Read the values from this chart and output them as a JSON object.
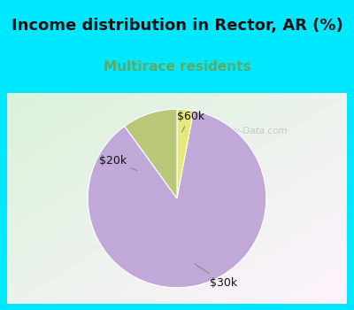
{
  "title": "Income distribution in Rector, AR (%)",
  "subtitle": "Multirace residents",
  "slices": [
    {
      "label": "$60k",
      "value": 3.0,
      "color": "#e8e87a"
    },
    {
      "label": "$30k",
      "value": 87.0,
      "color": "#c0a8d8"
    },
    {
      "label": "$20k",
      "value": 10.0,
      "color": "#b8c878"
    }
  ],
  "startangle": 90,
  "title_fontsize": 13,
  "title_fontweight": "bold",
  "subtitle_fontsize": 11,
  "subtitle_color": "#5aaa6a",
  "background_top": "#00e8ff",
  "watermark": "City-Data.com",
  "watermark_color": "#aaaaaa",
  "label_fontsize": 9,
  "label_color": "#111111"
}
